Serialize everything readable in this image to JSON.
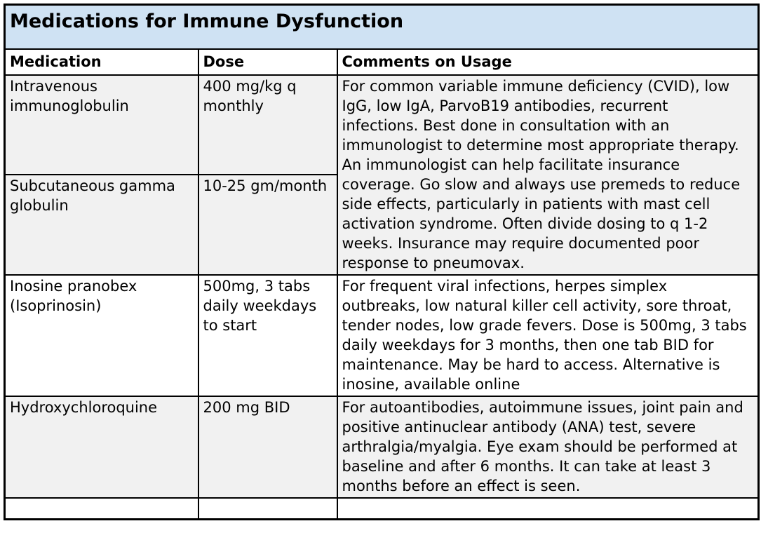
{
  "title": "Medications for Immune Dysfunction",
  "table": {
    "columns": [
      "Medication",
      "Dose",
      "Comments on Usage"
    ],
    "rows": [
      {
        "medication": "Intravenous\nimmunoglobulin",
        "dose": "400 mg/kg q\nmonthly",
        "comments": "For common variable immune deficiency (CVID), low IgG, low IgA, ParvoB19 antibodies, recurrent infections. Best done in consultation with an immunologist to determine most appropriate therapy. An immunologist can help facilitate insurance coverage. Go slow and always use premeds to reduce side effects, particularly in patients with mast cell activation syndrome. Often divide dosing to q 1-2 weeks. Insurance may require documented poor response to pneumovax."
      },
      {
        "medication": "Subcutaneous gamma\nglobulin",
        "dose": "10-25 gm/month"
      },
      {
        "medication": "Inosine pranobex\n(Isoprinosin)",
        "dose": "500mg, 3 tabs\ndaily weekdays\nto start",
        "comments": "For frequent viral infections, herpes simplex outbreaks, low natural killer cell activity, sore throat, tender nodes, low grade fevers. Dose is 500mg, 3 tabs daily weekdays for 3 months, then one tab BID for maintenance. May be hard to access. Alternative is inosine, available online"
      },
      {
        "medication": "Hydroxychloroquine",
        "dose": "200 mg BID",
        "comments": "For autoantibodies, autoimmune issues, joint pain and positive antinuclear antibody (ANA) test, severe arthralgia/myalgia. Eye exam should be performed at baseline and after 6 months. It can take at least 3 months before an effect is seen."
      },
      {
        "medication": "",
        "dose": "",
        "comments": ""
      }
    ]
  },
  "colors": {
    "title_background": "#cfe2f3",
    "row_band_background": "#f1f1f1",
    "border": "#000000",
    "text": "#000000"
  }
}
